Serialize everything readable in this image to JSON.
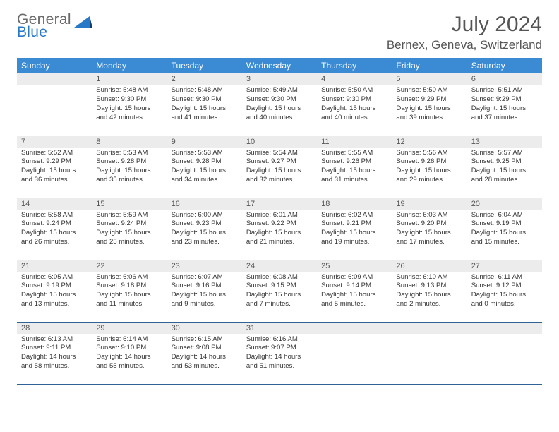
{
  "logo": {
    "line1": "General",
    "line2": "Blue"
  },
  "title": "July 2024",
  "location": "Bernex, Geneva, Switzerland",
  "colors": {
    "header_bg": "#3b8bd4",
    "header_text": "#ffffff",
    "daynum_bg": "#ececec",
    "border": "#2f6296",
    "logo_gray": "#6a6a6a",
    "logo_blue": "#2878c8"
  },
  "weekdays": [
    "Sunday",
    "Monday",
    "Tuesday",
    "Wednesday",
    "Thursday",
    "Friday",
    "Saturday"
  ],
  "weeks": [
    [
      {
        "day": "",
        "lines": []
      },
      {
        "day": "1",
        "lines": [
          "Sunrise: 5:48 AM",
          "Sunset: 9:30 PM",
          "Daylight: 15 hours and 42 minutes."
        ]
      },
      {
        "day": "2",
        "lines": [
          "Sunrise: 5:48 AM",
          "Sunset: 9:30 PM",
          "Daylight: 15 hours and 41 minutes."
        ]
      },
      {
        "day": "3",
        "lines": [
          "Sunrise: 5:49 AM",
          "Sunset: 9:30 PM",
          "Daylight: 15 hours and 40 minutes."
        ]
      },
      {
        "day": "4",
        "lines": [
          "Sunrise: 5:50 AM",
          "Sunset: 9:30 PM",
          "Daylight: 15 hours and 40 minutes."
        ]
      },
      {
        "day": "5",
        "lines": [
          "Sunrise: 5:50 AM",
          "Sunset: 9:29 PM",
          "Daylight: 15 hours and 39 minutes."
        ]
      },
      {
        "day": "6",
        "lines": [
          "Sunrise: 5:51 AM",
          "Sunset: 9:29 PM",
          "Daylight: 15 hours and 37 minutes."
        ]
      }
    ],
    [
      {
        "day": "7",
        "lines": [
          "Sunrise: 5:52 AM",
          "Sunset: 9:29 PM",
          "Daylight: 15 hours and 36 minutes."
        ]
      },
      {
        "day": "8",
        "lines": [
          "Sunrise: 5:53 AM",
          "Sunset: 9:28 PM",
          "Daylight: 15 hours and 35 minutes."
        ]
      },
      {
        "day": "9",
        "lines": [
          "Sunrise: 5:53 AM",
          "Sunset: 9:28 PM",
          "Daylight: 15 hours and 34 minutes."
        ]
      },
      {
        "day": "10",
        "lines": [
          "Sunrise: 5:54 AM",
          "Sunset: 9:27 PM",
          "Daylight: 15 hours and 32 minutes."
        ]
      },
      {
        "day": "11",
        "lines": [
          "Sunrise: 5:55 AM",
          "Sunset: 9:26 PM",
          "Daylight: 15 hours and 31 minutes."
        ]
      },
      {
        "day": "12",
        "lines": [
          "Sunrise: 5:56 AM",
          "Sunset: 9:26 PM",
          "Daylight: 15 hours and 29 minutes."
        ]
      },
      {
        "day": "13",
        "lines": [
          "Sunrise: 5:57 AM",
          "Sunset: 9:25 PM",
          "Daylight: 15 hours and 28 minutes."
        ]
      }
    ],
    [
      {
        "day": "14",
        "lines": [
          "Sunrise: 5:58 AM",
          "Sunset: 9:24 PM",
          "Daylight: 15 hours and 26 minutes."
        ]
      },
      {
        "day": "15",
        "lines": [
          "Sunrise: 5:59 AM",
          "Sunset: 9:24 PM",
          "Daylight: 15 hours and 25 minutes."
        ]
      },
      {
        "day": "16",
        "lines": [
          "Sunrise: 6:00 AM",
          "Sunset: 9:23 PM",
          "Daylight: 15 hours and 23 minutes."
        ]
      },
      {
        "day": "17",
        "lines": [
          "Sunrise: 6:01 AM",
          "Sunset: 9:22 PM",
          "Daylight: 15 hours and 21 minutes."
        ]
      },
      {
        "day": "18",
        "lines": [
          "Sunrise: 6:02 AM",
          "Sunset: 9:21 PM",
          "Daylight: 15 hours and 19 minutes."
        ]
      },
      {
        "day": "19",
        "lines": [
          "Sunrise: 6:03 AM",
          "Sunset: 9:20 PM",
          "Daylight: 15 hours and 17 minutes."
        ]
      },
      {
        "day": "20",
        "lines": [
          "Sunrise: 6:04 AM",
          "Sunset: 9:19 PM",
          "Daylight: 15 hours and 15 minutes."
        ]
      }
    ],
    [
      {
        "day": "21",
        "lines": [
          "Sunrise: 6:05 AM",
          "Sunset: 9:19 PM",
          "Daylight: 15 hours and 13 minutes."
        ]
      },
      {
        "day": "22",
        "lines": [
          "Sunrise: 6:06 AM",
          "Sunset: 9:18 PM",
          "Daylight: 15 hours and 11 minutes."
        ]
      },
      {
        "day": "23",
        "lines": [
          "Sunrise: 6:07 AM",
          "Sunset: 9:16 PM",
          "Daylight: 15 hours and 9 minutes."
        ]
      },
      {
        "day": "24",
        "lines": [
          "Sunrise: 6:08 AM",
          "Sunset: 9:15 PM",
          "Daylight: 15 hours and 7 minutes."
        ]
      },
      {
        "day": "25",
        "lines": [
          "Sunrise: 6:09 AM",
          "Sunset: 9:14 PM",
          "Daylight: 15 hours and 5 minutes."
        ]
      },
      {
        "day": "26",
        "lines": [
          "Sunrise: 6:10 AM",
          "Sunset: 9:13 PM",
          "Daylight: 15 hours and 2 minutes."
        ]
      },
      {
        "day": "27",
        "lines": [
          "Sunrise: 6:11 AM",
          "Sunset: 9:12 PM",
          "Daylight: 15 hours and 0 minutes."
        ]
      }
    ],
    [
      {
        "day": "28",
        "lines": [
          "Sunrise: 6:13 AM",
          "Sunset: 9:11 PM",
          "Daylight: 14 hours and 58 minutes."
        ]
      },
      {
        "day": "29",
        "lines": [
          "Sunrise: 6:14 AM",
          "Sunset: 9:10 PM",
          "Daylight: 14 hours and 55 minutes."
        ]
      },
      {
        "day": "30",
        "lines": [
          "Sunrise: 6:15 AM",
          "Sunset: 9:08 PM",
          "Daylight: 14 hours and 53 minutes."
        ]
      },
      {
        "day": "31",
        "lines": [
          "Sunrise: 6:16 AM",
          "Sunset: 9:07 PM",
          "Daylight: 14 hours and 51 minutes."
        ]
      },
      {
        "day": "",
        "lines": []
      },
      {
        "day": "",
        "lines": []
      },
      {
        "day": "",
        "lines": []
      }
    ]
  ]
}
